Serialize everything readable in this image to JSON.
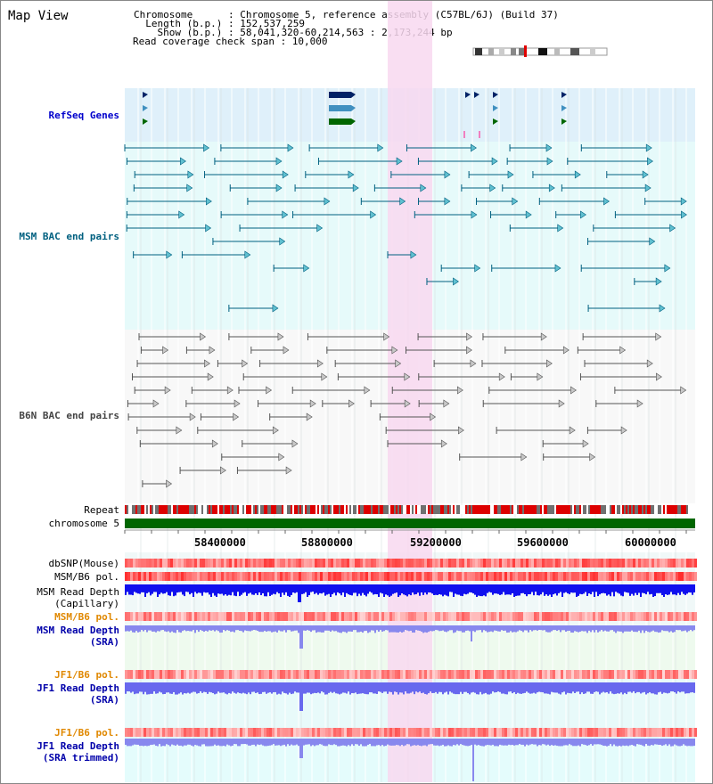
{
  "view": {
    "title": "Map View"
  },
  "info": {
    "chromosome": "Chromosome      : Chromosome 5, reference assembly (C57BL/6J) (Build 37)",
    "length": "  Length (b.p.) : 152,537,259",
    "show": "    Show (b.p.) : 58,041,320-60,214,563 : 2,173,244 bp",
    "coverage": "Read coverage check span : 10,000"
  },
  "tracks": {
    "refseq": "RefSeq Genes",
    "msm_bac": "MSM BAC end pairs",
    "b6n_bac": "B6N BAC end pairs",
    "repeat": "Repeat",
    "chromosome": "chromosome 5",
    "dbsnp": "dbSNP(Mouse)",
    "msm_b6_pol_1": "MSM/B6 pol.",
    "msm_depth_cap_1": "MSM Read Depth",
    "msm_depth_cap_2": "(Capillary)",
    "msm_b6_pol_2": "MSM/B6 pol.",
    "msm_depth_sra_1": "MSM Read Depth",
    "msm_depth_sra_2": "(SRA)",
    "jf1_b6_pol_1": "JF1/B6 pol.",
    "jf1_depth_sra_1": "JF1 Read Depth",
    "jf1_depth_sra_2": "(SRA)",
    "jf1_b6_pol_2": "JF1/B6 pol.",
    "jf1_depth_trim_1": "JF1 Read Depth",
    "jf1_depth_trim_2": "(SRA trimmed)"
  },
  "axis": {
    "ticks": [
      "58400000",
      "58800000",
      "59200000",
      "59600000",
      "60000000"
    ]
  },
  "colors": {
    "refseq_bg": "#dff0fa",
    "msm_bac_bg": "#e6fafa",
    "b6n_bac_bg": "#f8f8f8",
    "highlight": "#f8d8f0",
    "chromosome_bar": "#006600",
    "msm_depth": "#0000ee",
    "sra_depth": "#8080f0"
  }
}
